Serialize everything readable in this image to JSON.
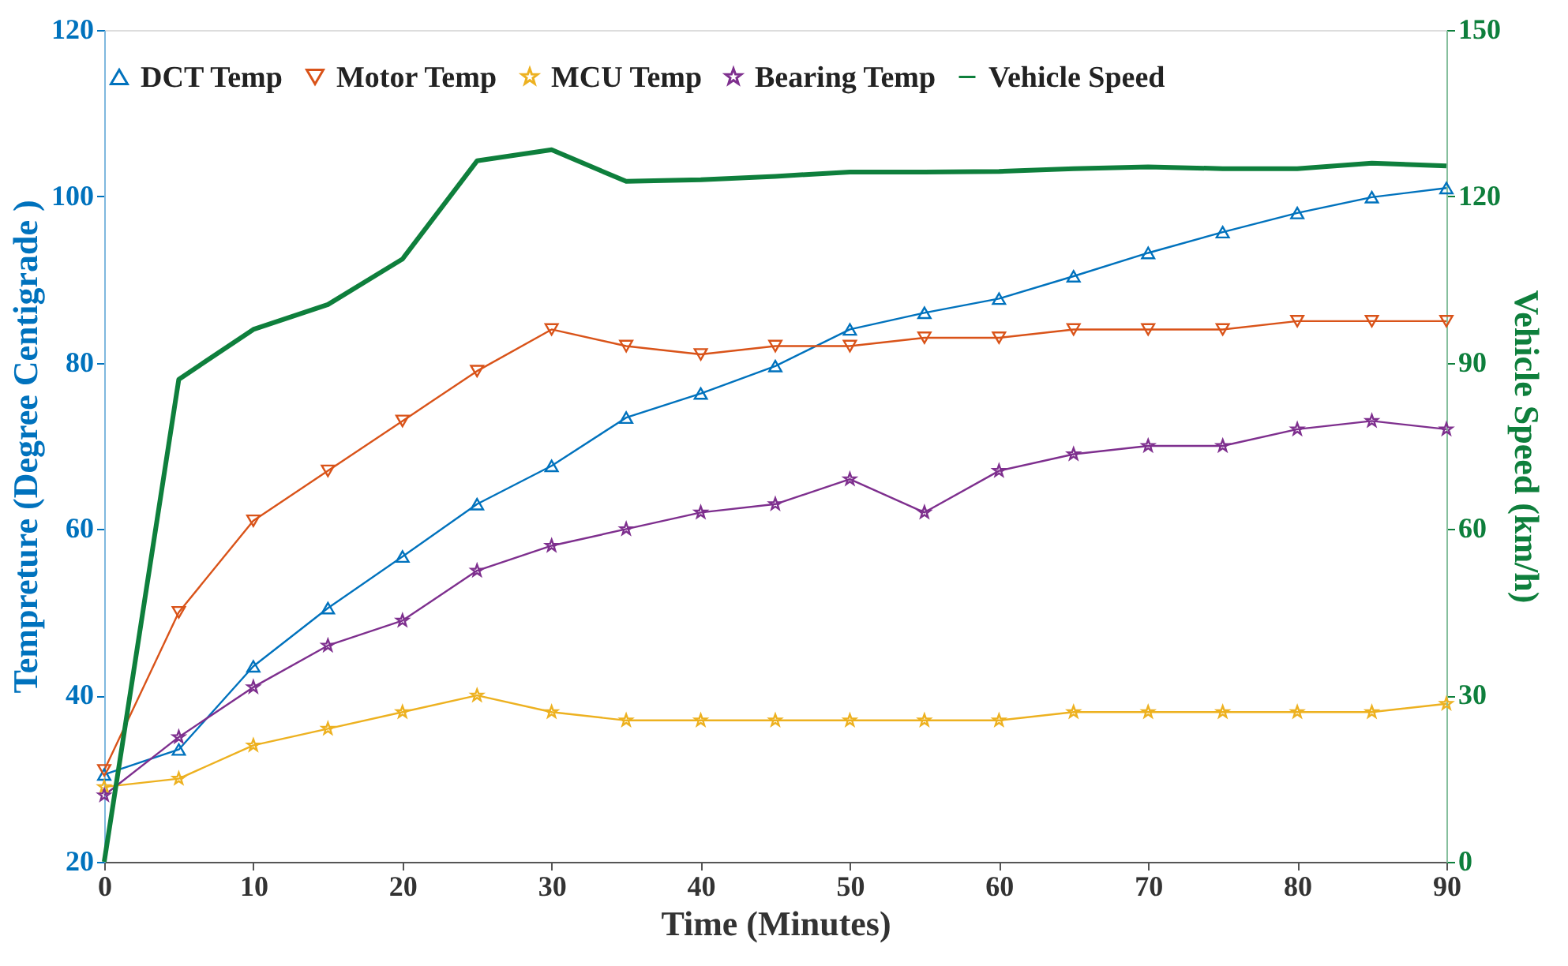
{
  "chart_data": {
    "type": "line",
    "xlabel": "Time (Minutes)",
    "ylabel": "Tempreture (Degree Centigrade )",
    "y2label": "Vehicle Speed (km/h)",
    "x": [
      0,
      5,
      10,
      15,
      20,
      25,
      30,
      35,
      40,
      45,
      50,
      55,
      60,
      65,
      70,
      75,
      80,
      85,
      90
    ],
    "xlim": [
      0,
      90
    ],
    "xticks": [
      0,
      10,
      20,
      30,
      40,
      50,
      60,
      70,
      80,
      90
    ],
    "ylim": [
      20,
      120
    ],
    "yticks": [
      20,
      40,
      60,
      80,
      100,
      120
    ],
    "y2lim": [
      0,
      150
    ],
    "y2ticks": [
      0,
      30,
      60,
      90,
      120,
      150
    ],
    "grid": false,
    "legend": "top",
    "series": [
      {
        "name": "DCT Temp",
        "color": "#0072bd",
        "marker": "triangle",
        "values": [
          30.5,
          33.5,
          43.5,
          50.5,
          56.7,
          63,
          67.6,
          73.4,
          76.3,
          79.6,
          84,
          86,
          87.7,
          90.4,
          93.2,
          95.7,
          98,
          99.9,
          101
        ]
      },
      {
        "name": "Motor Temp",
        "color": "#d95319",
        "marker": "triangle-down",
        "values": [
          31,
          50,
          61,
          67,
          73,
          79,
          84,
          82,
          81,
          82,
          82,
          83,
          83,
          84,
          84,
          84,
          85,
          85,
          85
        ]
      },
      {
        "name": "MCU Temp",
        "color": "#edb120",
        "marker": "star",
        "values": [
          29,
          30,
          34,
          36,
          38,
          40,
          38,
          37,
          37,
          37,
          37,
          37,
          37,
          38,
          38,
          38,
          38,
          38,
          39
        ]
      },
      {
        "name": "Bearing Temp",
        "color": "#7e2f8e",
        "marker": "star",
        "values": [
          28,
          35,
          41,
          46,
          49,
          55,
          58,
          60,
          62,
          63,
          66,
          62,
          67,
          69,
          70,
          70,
          72,
          73,
          72
        ]
      },
      {
        "name": "Vehicle Speed",
        "color": "#0e7f3c",
        "marker": "none",
        "axis": "y2",
        "values": [
          0,
          87,
          96,
          100.5,
          108.7,
          126.4,
          128.4,
          122.7,
          123,
          123.6,
          124.4,
          124.4,
          124.5,
          125,
          125.3,
          125,
          125,
          126,
          125.5
        ]
      }
    ]
  }
}
